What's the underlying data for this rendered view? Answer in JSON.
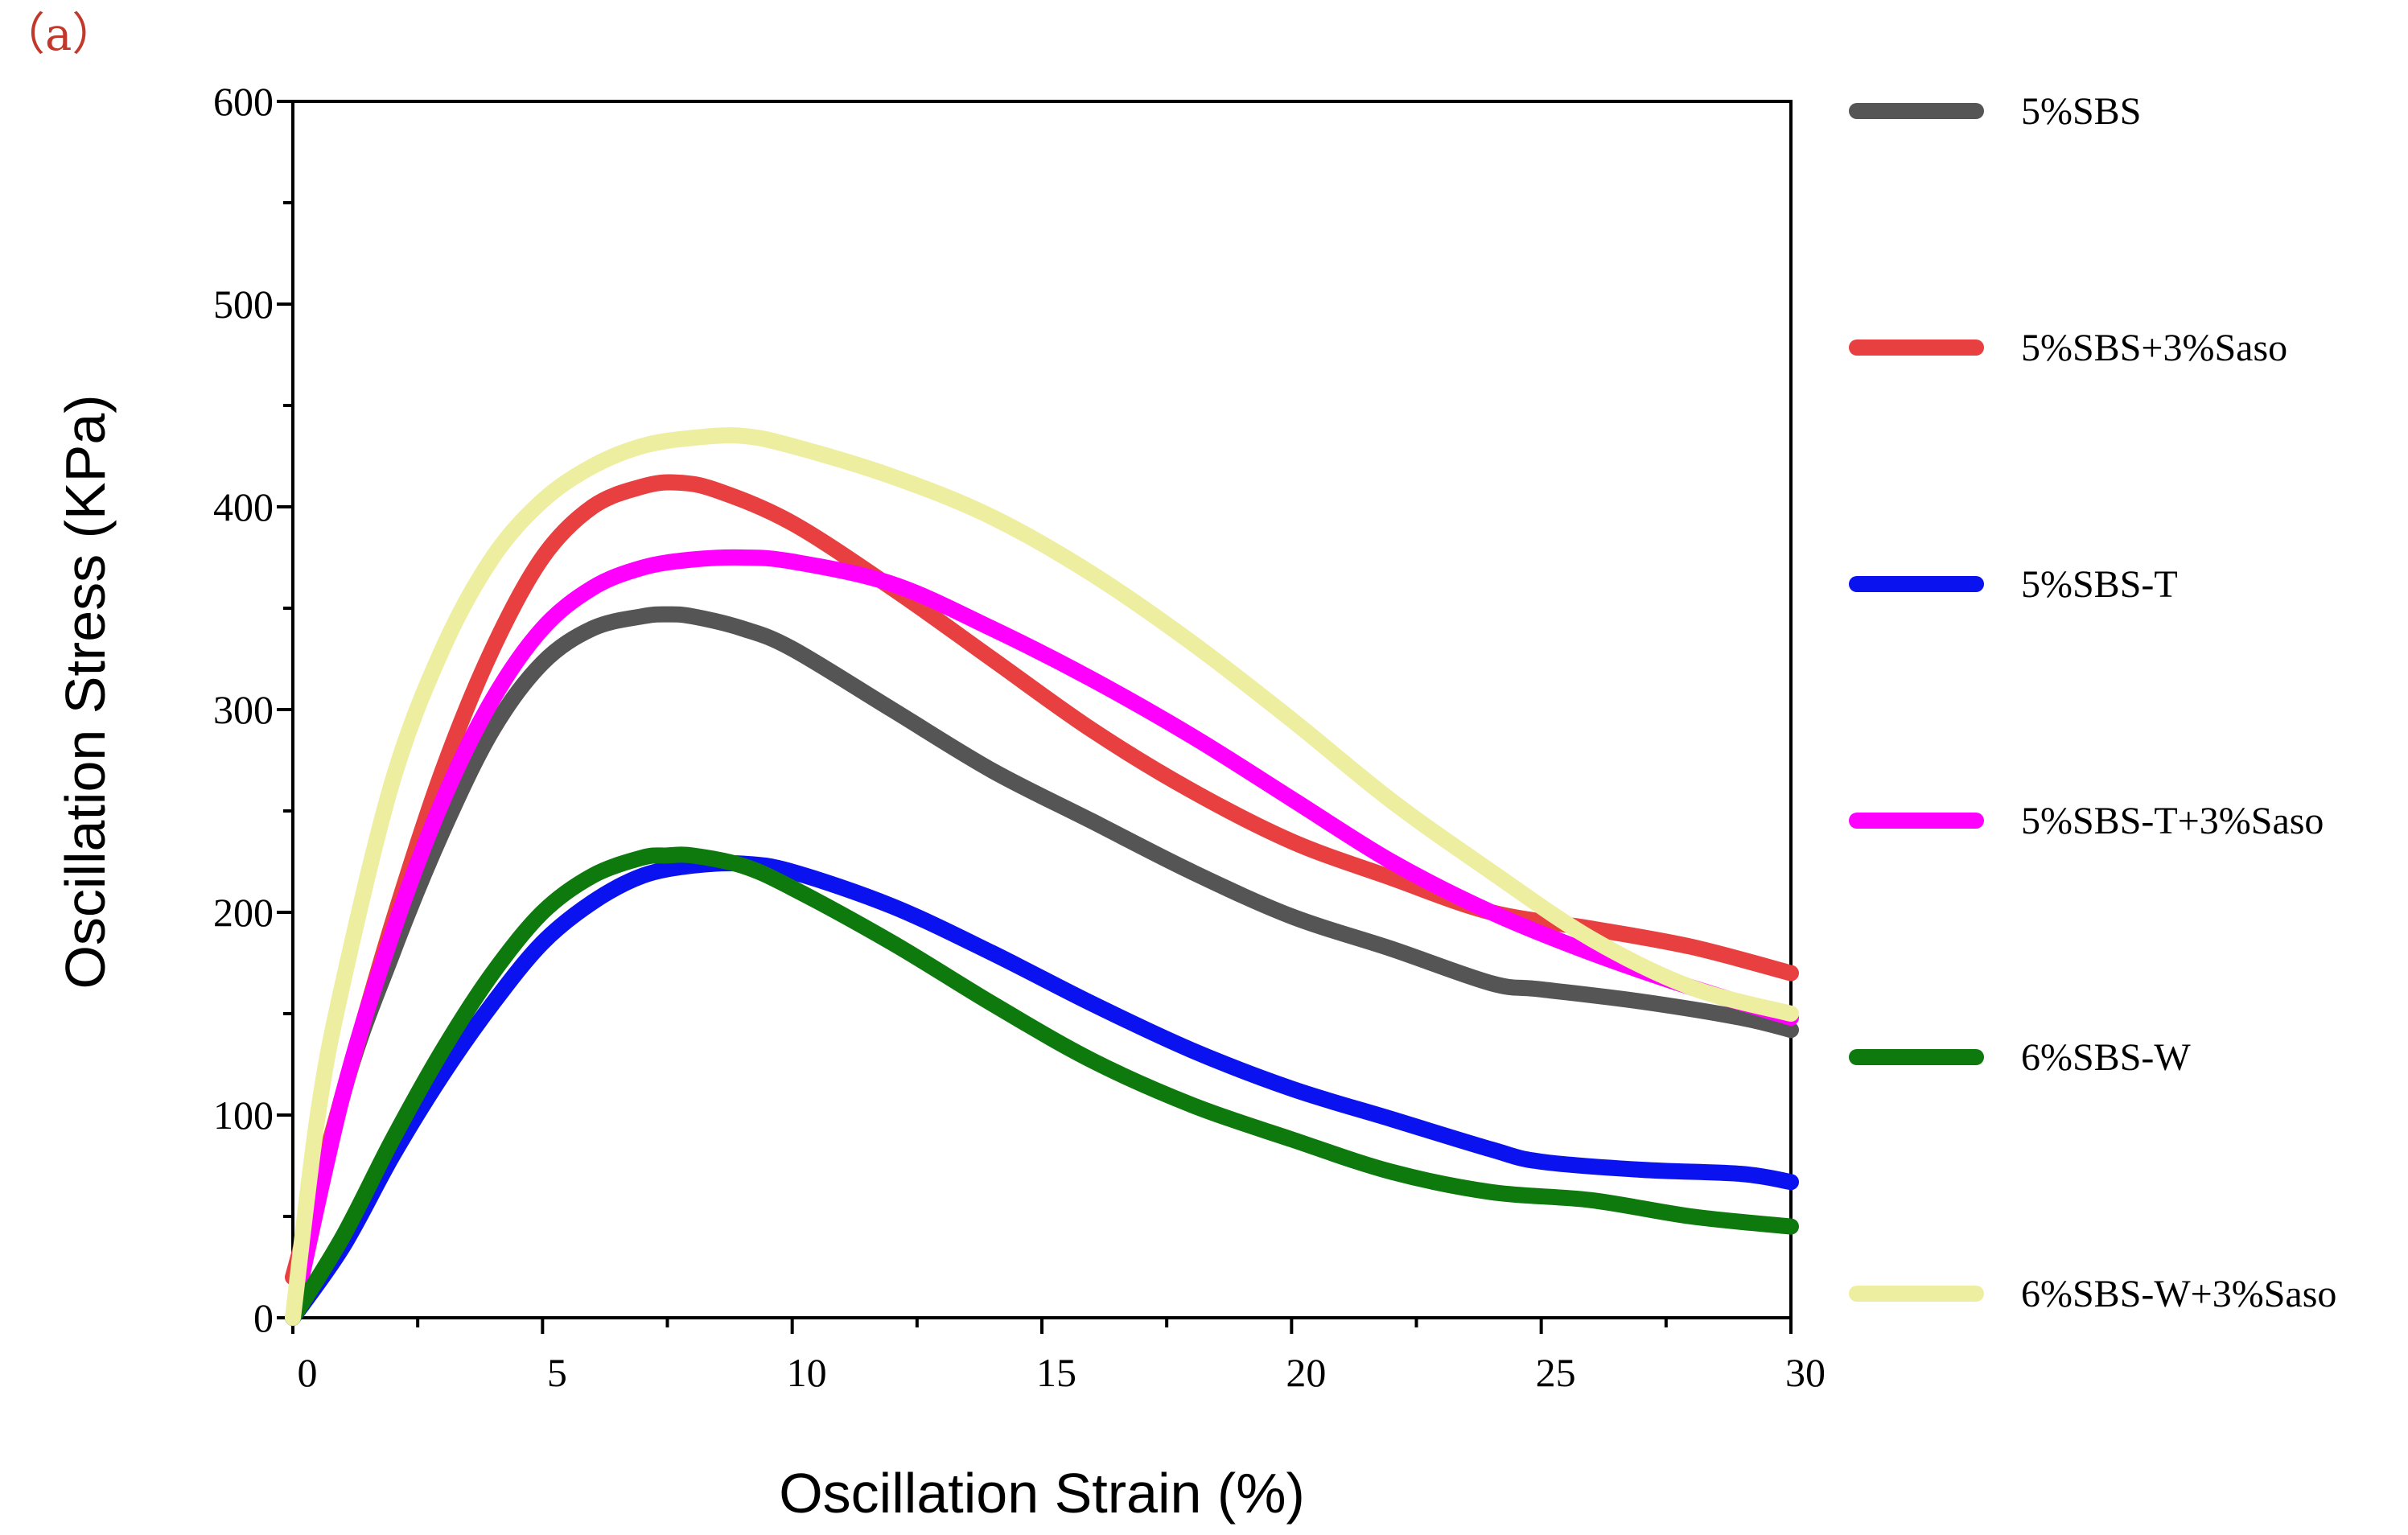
{
  "chart_data": {
    "type": "line",
    "panel_label": "（a）",
    "xlabel": "Oscillation Strain (%)",
    "ylabel": "Oscillation Stress (KPa)",
    "xlim": [
      0,
      30
    ],
    "ylim": [
      0,
      600
    ],
    "xticks": [
      0,
      5,
      10,
      15,
      20,
      25,
      30
    ],
    "yticks": [
      0,
      100,
      200,
      300,
      400,
      500,
      600
    ],
    "grid": false,
    "legend_position": "right",
    "series": [
      {
        "name": "5%SBS",
        "color": "#555555",
        "x": [
          0,
          1,
          2,
          3,
          4,
          5,
          6,
          7,
          7.5,
          8,
          9,
          10,
          12,
          14,
          16,
          18,
          20,
          22,
          24,
          25,
          27,
          29,
          30
        ],
        "y": [
          0,
          110,
          180,
          240,
          290,
          323,
          340,
          346,
          347,
          346,
          340,
          330,
          300,
          270,
          245,
          220,
          198,
          182,
          165,
          162,
          156,
          148,
          142
        ]
      },
      {
        "name": "5%SBS+3%Saso",
        "color": "#e84040",
        "x": [
          0,
          1,
          2,
          3,
          4,
          5,
          6,
          7,
          7.7,
          8.5,
          10,
          12,
          14,
          16,
          18,
          20,
          22,
          24,
          26,
          28,
          30
        ],
        "y": [
          20,
          110,
          195,
          270,
          330,
          375,
          400,
          410,
          412,
          408,
          392,
          360,
          325,
          290,
          260,
          235,
          217,
          200,
          192,
          183,
          170
        ]
      },
      {
        "name": "5%SBS-T",
        "color": "#0a12f0",
        "x": [
          0,
          1,
          2,
          3,
          4,
          5,
          6,
          7,
          8,
          9,
          10,
          12,
          14,
          16,
          18,
          20,
          22,
          24,
          25,
          27,
          29,
          30
        ],
        "y": [
          0,
          35,
          80,
          120,
          155,
          185,
          205,
          218,
          223,
          224,
          220,
          203,
          180,
          155,
          132,
          113,
          98,
          83,
          77,
          73,
          71,
          67
        ]
      },
      {
        "name": "5%SBS-T+3%Saso",
        "color": "#ff00ff",
        "x": [
          0,
          1,
          2,
          3,
          4,
          5,
          6,
          7,
          8,
          9,
          10,
          12,
          14,
          16,
          18,
          20,
          22,
          24,
          26,
          28,
          30
        ],
        "y": [
          0,
          110,
          190,
          255,
          305,
          340,
          360,
          370,
          374,
          375,
          373,
          362,
          340,
          315,
          287,
          256,
          225,
          200,
          180,
          163,
          148
        ]
      },
      {
        "name": "6%SBS-W",
        "color": "#0e7a0e",
        "x": [
          0,
          1,
          2,
          3,
          4,
          5,
          6,
          7,
          7.5,
          8,
          9,
          10,
          12,
          14,
          16,
          18,
          20,
          22,
          24,
          26,
          28,
          30
        ],
        "y": [
          0,
          40,
          88,
          132,
          170,
          200,
          218,
          227,
          228,
          228,
          223,
          212,
          185,
          155,
          127,
          105,
          88,
          72,
          62,
          58,
          50,
          45
        ]
      },
      {
        "name": "6%SBS-W+3%Saso",
        "color": "#eeeea0",
        "x": [
          0,
          0.5,
          1,
          2,
          3,
          4,
          5,
          6,
          7,
          8,
          9,
          10,
          12,
          14,
          16,
          18,
          20,
          22,
          24,
          26,
          28,
          30
        ],
        "y": [
          0,
          100,
          165,
          265,
          330,
          375,
          403,
          420,
          430,
          434,
          435,
          430,
          415,
          395,
          367,
          333,
          295,
          255,
          220,
          187,
          163,
          150
        ]
      }
    ]
  }
}
